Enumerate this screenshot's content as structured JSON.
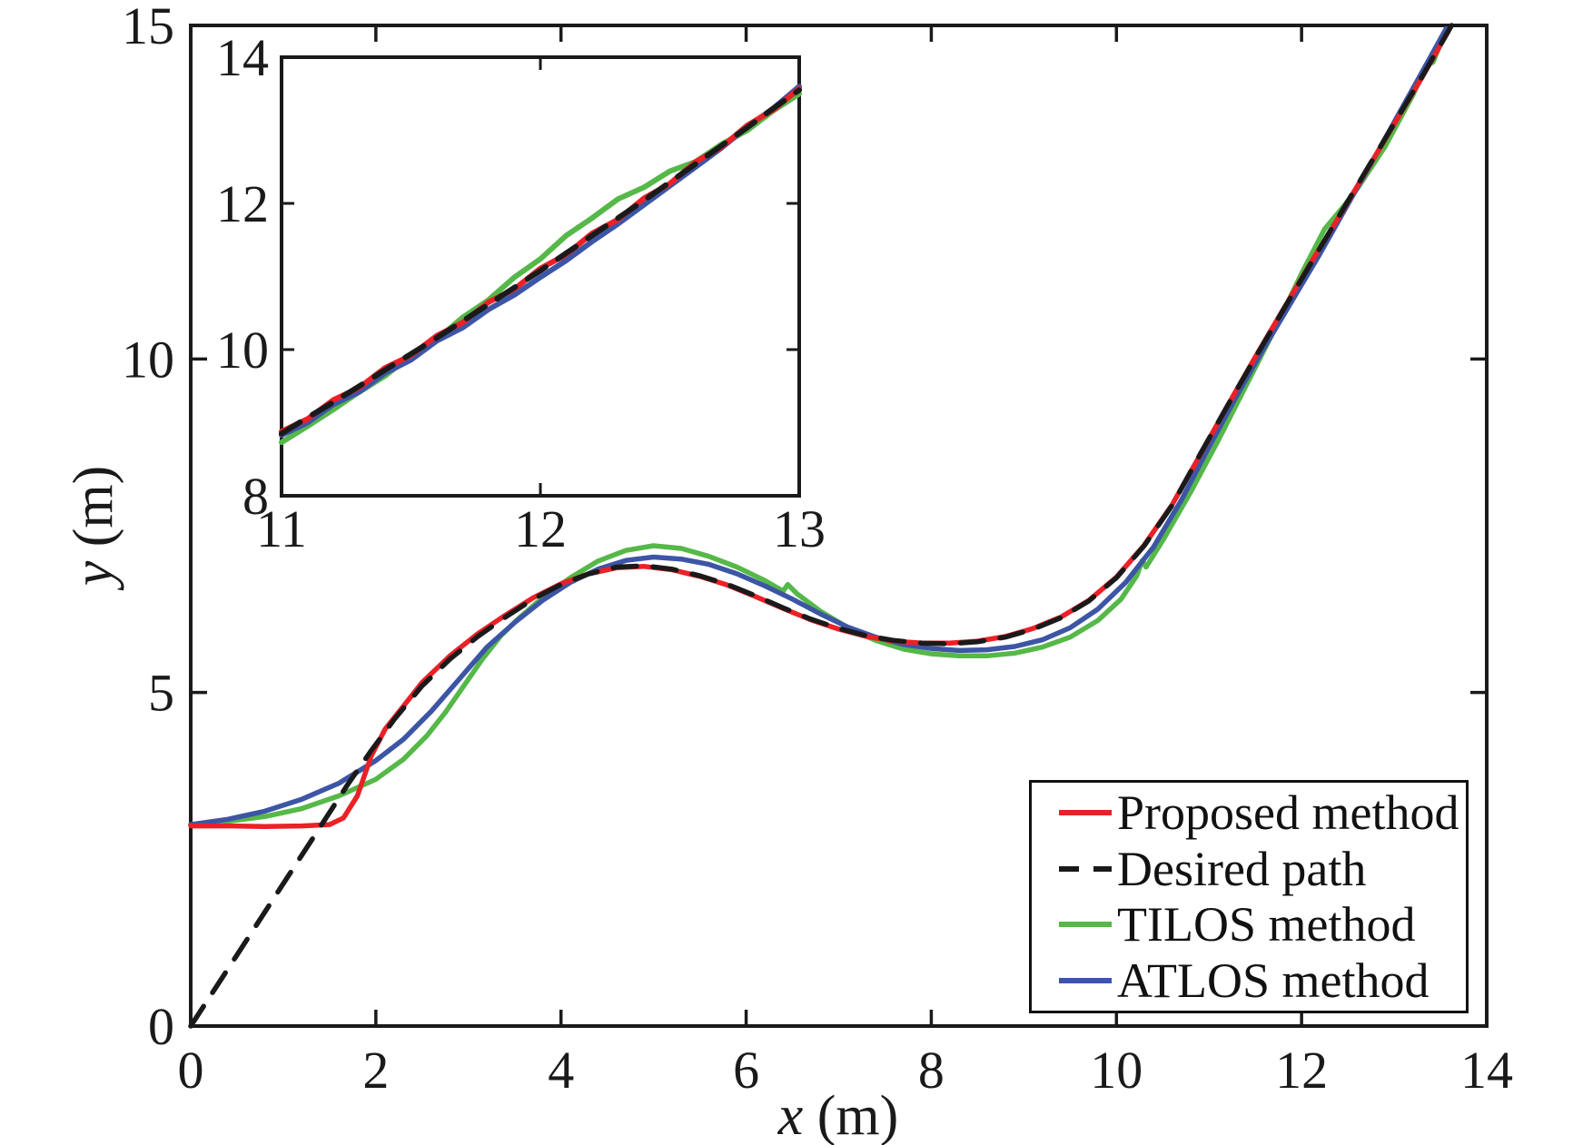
{
  "chart_data": {
    "type": "line",
    "title": "",
    "xlabel_var": "x",
    "xlabel_unit": " (m)",
    "ylabel_var": "y",
    "ylabel_unit": " (m)",
    "xlim": [
      0,
      14
    ],
    "ylim": [
      0,
      15
    ],
    "xticks": [
      0,
      2,
      4,
      6,
      8,
      10,
      12,
      14
    ],
    "yticks": [
      0,
      5,
      10,
      15
    ],
    "grid": false,
    "axis_color": "#1a1a1a",
    "legend_position": "lower right",
    "draw_order": [
      2,
      3,
      0,
      1
    ],
    "series": [
      {
        "id": "proposed",
        "name": "Proposed method",
        "color": "#ea2127",
        "style": "solid",
        "points": [
          [
            0,
            3.0
          ],
          [
            0.4,
            3.0
          ],
          [
            0.8,
            2.99
          ],
          [
            1.2,
            3.0
          ],
          [
            1.5,
            3.02
          ],
          [
            1.65,
            3.12
          ],
          [
            1.8,
            3.45
          ],
          [
            1.95,
            4.05
          ],
          [
            2.1,
            4.45
          ],
          [
            2.3,
            4.8
          ],
          [
            2.5,
            5.15
          ],
          [
            2.8,
            5.55
          ],
          [
            3.1,
            5.88
          ],
          [
            3.4,
            6.16
          ],
          [
            3.7,
            6.42
          ],
          [
            4.0,
            6.63
          ],
          [
            4.3,
            6.78
          ],
          [
            4.6,
            6.87
          ],
          [
            4.9,
            6.89
          ],
          [
            5.2,
            6.84
          ],
          [
            5.5,
            6.74
          ],
          [
            5.8,
            6.61
          ],
          [
            6.1,
            6.44
          ],
          [
            6.4,
            6.26
          ],
          [
            6.7,
            6.09
          ],
          [
            7.0,
            5.95
          ],
          [
            7.3,
            5.84
          ],
          [
            7.6,
            5.77
          ],
          [
            7.9,
            5.74
          ],
          [
            8.2,
            5.74
          ],
          [
            8.5,
            5.77
          ],
          [
            8.8,
            5.84
          ],
          [
            9.1,
            5.96
          ],
          [
            9.4,
            6.13
          ],
          [
            9.7,
            6.38
          ],
          [
            10.0,
            6.73
          ],
          [
            10.3,
            7.21
          ],
          [
            10.6,
            7.81
          ],
          [
            10.9,
            8.55
          ],
          [
            11.2,
            9.3
          ],
          [
            11.5,
            10.03
          ],
          [
            11.8,
            10.74
          ],
          [
            12.1,
            11.44
          ],
          [
            12.4,
            12.12
          ],
          [
            12.7,
            12.82
          ],
          [
            13.0,
            13.52
          ],
          [
            13.3,
            14.22
          ],
          [
            13.58,
            14.9
          ]
        ],
        "inset_points": [
          [
            11,
            8.88
          ],
          [
            11.1,
            9.05
          ],
          [
            11.2,
            9.31
          ],
          [
            11.3,
            9.48
          ],
          [
            11.4,
            9.75
          ],
          [
            11.5,
            9.92
          ],
          [
            11.6,
            10.19
          ],
          [
            11.7,
            10.37
          ],
          [
            11.8,
            10.65
          ],
          [
            11.9,
            10.83
          ],
          [
            12.0,
            11.11
          ],
          [
            12.1,
            11.3
          ],
          [
            12.2,
            11.59
          ],
          [
            12.3,
            11.78
          ],
          [
            12.4,
            12.07
          ],
          [
            12.5,
            12.27
          ],
          [
            12.6,
            12.57
          ],
          [
            12.7,
            12.77
          ],
          [
            12.8,
            13.07
          ],
          [
            12.9,
            13.28
          ],
          [
            13.0,
            13.57
          ]
        ]
      },
      {
        "id": "desired",
        "name": "Desired path",
        "color": "#1a1a1a",
        "style": "dashed",
        "points": [
          [
            0,
            0
          ],
          [
            0.45,
            0.96
          ],
          [
            0.9,
            1.92
          ],
          [
            1.35,
            2.88
          ],
          [
            1.7,
            3.63
          ],
          [
            1.95,
            4.13
          ],
          [
            2.2,
            4.6
          ],
          [
            2.5,
            5.1
          ],
          [
            2.8,
            5.5
          ],
          [
            3.1,
            5.84
          ],
          [
            3.4,
            6.13
          ],
          [
            3.7,
            6.4
          ],
          [
            4.0,
            6.62
          ],
          [
            4.3,
            6.78
          ],
          [
            4.6,
            6.88
          ],
          [
            4.9,
            6.9
          ],
          [
            5.2,
            6.85
          ],
          [
            5.5,
            6.75
          ],
          [
            5.8,
            6.62
          ],
          [
            6.1,
            6.45
          ],
          [
            6.4,
            6.27
          ],
          [
            6.7,
            6.1
          ],
          [
            7.0,
            5.96
          ],
          [
            7.3,
            5.85
          ],
          [
            7.6,
            5.78
          ],
          [
            7.9,
            5.74
          ],
          [
            8.2,
            5.73
          ],
          [
            8.5,
            5.76
          ],
          [
            8.8,
            5.83
          ],
          [
            9.1,
            5.95
          ],
          [
            9.4,
            6.12
          ],
          [
            9.7,
            6.37
          ],
          [
            10.0,
            6.72
          ],
          [
            10.3,
            7.2
          ],
          [
            10.6,
            7.8
          ],
          [
            10.9,
            8.56
          ],
          [
            11.2,
            9.3
          ],
          [
            11.5,
            10.02
          ],
          [
            11.8,
            10.73
          ],
          [
            12.1,
            11.43
          ],
          [
            12.4,
            12.13
          ],
          [
            12.7,
            12.83
          ],
          [
            13.0,
            13.53
          ],
          [
            13.3,
            14.23
          ],
          [
            13.62,
            15.0
          ]
        ],
        "inset_points": [
          [
            11,
            8.85
          ],
          [
            11.1,
            9.07
          ],
          [
            11.2,
            9.28
          ],
          [
            11.3,
            9.5
          ],
          [
            11.4,
            9.72
          ],
          [
            11.5,
            9.94
          ],
          [
            11.6,
            10.16
          ],
          [
            11.7,
            10.39
          ],
          [
            11.8,
            10.62
          ],
          [
            11.9,
            10.85
          ],
          [
            12.0,
            11.08
          ],
          [
            12.1,
            11.32
          ],
          [
            12.2,
            11.56
          ],
          [
            12.3,
            11.8
          ],
          [
            12.4,
            12.04
          ],
          [
            12.5,
            12.29
          ],
          [
            12.6,
            12.54
          ],
          [
            12.7,
            12.79
          ],
          [
            12.8,
            13.04
          ],
          [
            12.9,
            13.3
          ],
          [
            13.0,
            13.55
          ]
        ]
      },
      {
        "id": "tilos",
        "name": "TILOS method",
        "color": "#55b848",
        "style": "solid",
        "points": [
          [
            0,
            3.02
          ],
          [
            0.4,
            3.07
          ],
          [
            0.8,
            3.14
          ],
          [
            1.2,
            3.26
          ],
          [
            1.6,
            3.45
          ],
          [
            2.0,
            3.7
          ],
          [
            2.3,
            4.0
          ],
          [
            2.55,
            4.35
          ],
          [
            2.75,
            4.7
          ],
          [
            2.95,
            5.1
          ],
          [
            3.15,
            5.5
          ],
          [
            3.35,
            5.85
          ],
          [
            3.55,
            6.12
          ],
          [
            3.8,
            6.42
          ],
          [
            4.1,
            6.72
          ],
          [
            4.4,
            6.97
          ],
          [
            4.7,
            7.13
          ],
          [
            5.0,
            7.2
          ],
          [
            5.3,
            7.16
          ],
          [
            5.6,
            7.04
          ],
          [
            5.9,
            6.88
          ],
          [
            6.2,
            6.68
          ],
          [
            6.4,
            6.52
          ],
          [
            6.45,
            6.62
          ],
          [
            6.55,
            6.48
          ],
          [
            6.8,
            6.22
          ],
          [
            7.1,
            5.97
          ],
          [
            7.4,
            5.78
          ],
          [
            7.7,
            5.65
          ],
          [
            8.0,
            5.58
          ],
          [
            8.3,
            5.55
          ],
          [
            8.6,
            5.55
          ],
          [
            8.9,
            5.59
          ],
          [
            9.2,
            5.68
          ],
          [
            9.5,
            5.83
          ],
          [
            9.8,
            6.08
          ],
          [
            10.05,
            6.4
          ],
          [
            10.22,
            6.75
          ],
          [
            10.28,
            6.98
          ],
          [
            10.32,
            6.88
          ],
          [
            10.5,
            7.28
          ],
          [
            10.8,
            8.0
          ],
          [
            11.1,
            8.78
          ],
          [
            11.4,
            9.6
          ],
          [
            11.7,
            10.42
          ],
          [
            12.0,
            11.28
          ],
          [
            12.25,
            11.95
          ],
          [
            12.45,
            12.28
          ],
          [
            12.6,
            12.55
          ],
          [
            12.9,
            13.18
          ],
          [
            13.2,
            13.95
          ],
          [
            13.35,
            14.4
          ],
          [
            13.42,
            14.45
          ],
          [
            13.5,
            14.72
          ]
        ],
        "inset_points": [
          [
            11,
            8.73
          ],
          [
            11.1,
            8.95
          ],
          [
            11.2,
            9.18
          ],
          [
            11.3,
            9.42
          ],
          [
            11.4,
            9.64
          ],
          [
            11.5,
            9.92
          ],
          [
            11.6,
            10.14
          ],
          [
            11.7,
            10.44
          ],
          [
            11.8,
            10.68
          ],
          [
            11.9,
            10.99
          ],
          [
            12.0,
            11.24
          ],
          [
            12.1,
            11.56
          ],
          [
            12.2,
            11.8
          ],
          [
            12.3,
            12.06
          ],
          [
            12.4,
            12.22
          ],
          [
            12.5,
            12.44
          ],
          [
            12.6,
            12.57
          ],
          [
            12.7,
            12.81
          ],
          [
            12.8,
            13.0
          ],
          [
            12.9,
            13.27
          ],
          [
            13.0,
            13.5
          ]
        ]
      },
      {
        "id": "atlos",
        "name": "ATLOS method",
        "color": "#3d55a5",
        "style": "solid",
        "points": [
          [
            0,
            3.02
          ],
          [
            0.4,
            3.1
          ],
          [
            0.8,
            3.22
          ],
          [
            1.2,
            3.4
          ],
          [
            1.6,
            3.64
          ],
          [
            2.0,
            3.98
          ],
          [
            2.3,
            4.3
          ],
          [
            2.6,
            4.72
          ],
          [
            2.9,
            5.2
          ],
          [
            3.2,
            5.68
          ],
          [
            3.5,
            6.05
          ],
          [
            3.8,
            6.38
          ],
          [
            4.1,
            6.65
          ],
          [
            4.4,
            6.85
          ],
          [
            4.7,
            6.98
          ],
          [
            5.0,
            7.03
          ],
          [
            5.3,
            7.0
          ],
          [
            5.6,
            6.92
          ],
          [
            5.9,
            6.78
          ],
          [
            6.2,
            6.6
          ],
          [
            6.5,
            6.4
          ],
          [
            6.8,
            6.18
          ],
          [
            7.1,
            5.98
          ],
          [
            7.4,
            5.83
          ],
          [
            7.7,
            5.72
          ],
          [
            8.0,
            5.66
          ],
          [
            8.3,
            5.63
          ],
          [
            8.6,
            5.64
          ],
          [
            8.9,
            5.69
          ],
          [
            9.2,
            5.79
          ],
          [
            9.5,
            5.97
          ],
          [
            9.8,
            6.25
          ],
          [
            10.1,
            6.65
          ],
          [
            10.4,
            7.18
          ],
          [
            10.7,
            7.88
          ],
          [
            11.0,
            8.68
          ],
          [
            11.3,
            9.45
          ],
          [
            11.6,
            10.18
          ],
          [
            11.9,
            10.88
          ],
          [
            12.2,
            11.58
          ],
          [
            12.5,
            12.32
          ],
          [
            12.8,
            13.05
          ],
          [
            13.1,
            13.8
          ],
          [
            13.35,
            14.42
          ],
          [
            13.56,
            14.95
          ]
        ],
        "inset_points": [
          [
            11,
            8.83
          ],
          [
            11.1,
            9.0
          ],
          [
            11.2,
            9.25
          ],
          [
            11.3,
            9.42
          ],
          [
            11.4,
            9.68
          ],
          [
            11.5,
            9.86
          ],
          [
            11.6,
            10.12
          ],
          [
            11.7,
            10.3
          ],
          [
            11.8,
            10.55
          ],
          [
            11.9,
            10.75
          ],
          [
            12.0,
            10.99
          ],
          [
            12.1,
            11.22
          ],
          [
            12.2,
            11.48
          ],
          [
            12.3,
            11.72
          ],
          [
            12.4,
            11.98
          ],
          [
            12.5,
            12.24
          ],
          [
            12.6,
            12.5
          ],
          [
            12.7,
            12.76
          ],
          [
            12.8,
            13.05
          ],
          [
            12.9,
            13.3
          ],
          [
            13.0,
            13.6
          ]
        ]
      }
    ],
    "inset": {
      "xlim": [
        11,
        13
      ],
      "ylim": [
        8,
        14
      ],
      "xticks": [
        11,
        12,
        13
      ],
      "yticks": [
        8,
        10,
        12,
        14
      ]
    }
  }
}
